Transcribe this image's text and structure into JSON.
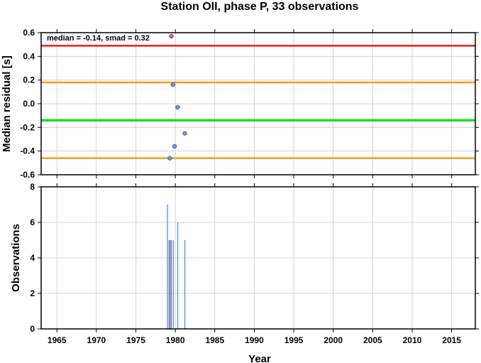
{
  "chart_data": [
    {
      "type": "scatter",
      "title": "Station OII, phase P, 33 observations",
      "annotation": "median = -0.14, smad = 0.32",
      "xlabel": "",
      "ylabel": "Median residual [s]",
      "xlim": [
        1963,
        2018
      ],
      "ylim": [
        -0.6,
        0.6
      ],
      "x_ticks": [
        1965,
        1970,
        1975,
        1980,
        1985,
        1990,
        1995,
        2000,
        2005,
        2010,
        2015
      ],
      "y_ticks": [
        -0.6,
        -0.4,
        -0.2,
        0.0,
        0.2,
        0.4,
        0.6
      ],
      "y_tick_labels": [
        "-0.6",
        "-0.4",
        "-0.2",
        "0.0",
        "0.2",
        "0.4",
        "0.6"
      ],
      "grid": true,
      "hlines": [
        {
          "y": 0.49,
          "color": "#ee1c1c",
          "role": "upper limit"
        },
        {
          "y": 0.18,
          "color": "#f5a01a",
          "role": "median + smad"
        },
        {
          "y": -0.14,
          "color": "#22dd22",
          "role": "median"
        },
        {
          "y": -0.46,
          "color": "#f5a01a",
          "role": "median - smad"
        }
      ],
      "points": [
        {
          "x": 1979.5,
          "y": 0.57,
          "color": "#f25c5c"
        },
        {
          "x": 1979.7,
          "y": 0.16,
          "color": "#5b9bf5"
        },
        {
          "x": 1980.3,
          "y": -0.03,
          "color": "#5b9bf5"
        },
        {
          "x": 1981.2,
          "y": -0.25,
          "color": "#5b9bf5"
        },
        {
          "x": 1979.9,
          "y": -0.36,
          "color": "#5b9bf5"
        },
        {
          "x": 1979.3,
          "y": -0.46,
          "color": "#5b9bf5"
        }
      ]
    },
    {
      "type": "bar",
      "xlabel": "Year",
      "ylabel": "Observations",
      "xlim": [
        1963,
        2018
      ],
      "ylim": [
        0,
        8
      ],
      "x_ticks": [
        1965,
        1970,
        1975,
        1980,
        1985,
        1990,
        1995,
        2000,
        2005,
        2010,
        2015
      ],
      "y_ticks": [
        0,
        2,
        4,
        6,
        8
      ],
      "grid": true,
      "bars": [
        {
          "x": 1979.0,
          "value": 7,
          "color": "#3b8ee8"
        },
        {
          "x": 1979.2,
          "value": 5,
          "color": "#3b8ee8"
        },
        {
          "x": 1979.35,
          "value": 5,
          "color": "#ee1c1c"
        },
        {
          "x": 1979.5,
          "value": 5,
          "color": "#3b8ee8"
        },
        {
          "x": 1979.75,
          "value": 5,
          "color": "#3b8ee8"
        },
        {
          "x": 1980.3,
          "value": 6,
          "color": "#3b8ee8"
        },
        {
          "x": 1981.2,
          "value": 5,
          "color": "#3b8ee8"
        }
      ]
    }
  ]
}
